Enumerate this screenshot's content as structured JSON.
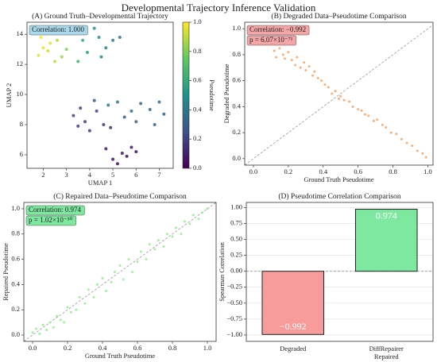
{
  "title": "Developmental Trajectory Inference Validation",
  "chart_data": [
    {
      "type": "scatter",
      "title": "(A) Ground Truth–Developmental Trajectory",
      "xlabel": "UMAP  1",
      "ylabel": "UMAP  2",
      "xlim": [
        1.3,
        7.6
      ],
      "ylim": [
        5.1,
        14.8
      ],
      "xticks": [
        2,
        3,
        4,
        5,
        6,
        7
      ],
      "yticks": [
        6,
        8,
        10,
        12,
        14
      ],
      "grid": false,
      "annotations": [
        {
          "text": "Correlation:  1.000",
          "color": "#a8d8ea"
        }
      ],
      "colormap": [
        "#440154",
        "#3b528b",
        "#21918c",
        "#5ec962",
        "#fde725"
      ],
      "colorbar": {
        "label": "Pseudotime",
        "lim": [
          0,
          1
        ],
        "ticks": [
          {
            "value": 0,
            "label": "0.0"
          },
          0.2,
          0.4,
          0.6,
          0.8,
          {
            "value": 1,
            "label": "1.0"
          }
        ]
      },
      "series": [
        {
          "x": [
            1.8,
            2.0,
            2.2,
            2.5,
            2.3,
            1.9,
            2.8,
            3.0,
            2.6,
            3.4,
            3.7,
            3.9,
            3.5,
            4.4,
            4.7,
            4.5,
            5.0,
            5.3,
            4.2,
            4.8,
            5.2,
            5.8,
            6.2,
            6.6,
            7.0,
            7.2,
            6.0,
            5.5,
            6.8,
            3.3,
            3.6,
            3.8,
            4.0,
            4.3,
            4.6,
            4.9,
            3.5,
            4.2,
            4.7,
            5.0,
            5.4,
            5.8,
            5.2,
            5.6,
            6.0
          ],
          "values": [
            12.6,
            13.1,
            12.9,
            12.2,
            13.4,
            13.8,
            12.5,
            13.0,
            13.6,
            14.2,
            13.6,
            12.8,
            12.2,
            13.8,
            13.1,
            12.5,
            13.6,
            13.8,
            14.4,
            9.3,
            9.5,
            8.9,
            9.4,
            9.0,
            9.5,
            8.7,
            8.2,
            8.5,
            8.0,
            8.6,
            9.1,
            8.2,
            7.6,
            8.9,
            8.0,
            7.8,
            7.9,
            9.6,
            6.4,
            5.7,
            6.1,
            6.5,
            5.4,
            5.9,
            6.2
          ],
          "c": [
            0.95,
            0.97,
            0.93,
            0.9,
            0.96,
            0.99,
            0.85,
            0.8,
            0.88,
            0.7,
            0.6,
            0.55,
            0.65,
            0.5,
            0.45,
            0.47,
            0.42,
            0.4,
            0.52,
            0.4,
            0.38,
            0.36,
            0.35,
            0.33,
            0.34,
            0.32,
            0.3,
            0.3,
            0.31,
            0.2,
            0.22,
            0.18,
            0.16,
            0.2,
            0.17,
            0.15,
            0.19,
            0.25,
            0.08,
            0.05,
            0.06,
            0.07,
            0.03,
            0.04,
            0.05
          ]
        }
      ]
    },
    {
      "type": "scatter",
      "title": "(B) Degraded Data–Pseudotime Comparison",
      "xlabel": "Ground Truth Pseudotime",
      "ylabel": "Degraded Pseudotime",
      "xlim": [
        -0.05,
        1.03
      ],
      "ylim": [
        -0.05,
        1.05
      ],
      "xticks": [
        {
          "value": 0,
          "label": "0.0"
        },
        0.2,
        0.4,
        0.6,
        0.8,
        {
          "value": 1,
          "label": "1.0"
        }
      ],
      "yticks": [
        {
          "value": 0,
          "label": "0.0"
        },
        0.2,
        0.4,
        0.6,
        0.8,
        {
          "value": 1,
          "label": "1.0"
        }
      ],
      "grid": false,
      "diagonal": true,
      "annotations": [
        {
          "text": "Correlation:  −0.992",
          "color": "#f4a6a6"
        },
        {
          "text": "p = 6.07×10⁻⁷¹",
          "color": "#f4a6a6"
        }
      ],
      "series": [
        {
          "color": "#f4a261",
          "x": [
            0.12,
            0.13,
            0.15,
            0.17,
            0.18,
            0.2,
            0.22,
            0.24,
            0.25,
            0.27,
            0.29,
            0.3,
            0.32,
            0.34,
            0.35,
            0.37,
            0.39,
            0.41,
            0.43,
            0.45,
            0.47,
            0.49,
            0.5,
            0.52,
            0.55,
            0.57,
            0.6,
            0.62,
            0.64,
            0.66,
            0.69,
            0.71,
            0.74,
            0.76,
            0.79,
            0.82,
            0.85,
            0.88,
            0.91,
            0.94,
            0.97,
            0.99
          ],
          "values": [
            0.83,
            0.78,
            0.85,
            0.8,
            0.77,
            0.82,
            0.76,
            0.72,
            0.78,
            0.7,
            0.74,
            0.68,
            0.71,
            0.64,
            0.67,
            0.62,
            0.6,
            0.57,
            0.55,
            0.5,
            0.52,
            0.46,
            0.48,
            0.45,
            0.44,
            0.4,
            0.38,
            0.37,
            0.34,
            0.33,
            0.29,
            0.3,
            0.26,
            0.24,
            0.2,
            0.19,
            0.15,
            0.12,
            0.1,
            0.06,
            0.04,
            0.01
          ]
        }
      ]
    },
    {
      "type": "scatter",
      "title": "(C) Repaired Data–Pseudotime Comparison",
      "xlabel": "Ground Truth Pseudotime",
      "ylabel": "Repaired Pseudotime",
      "xlim": [
        -0.05,
        1.05
      ],
      "ylim": [
        -0.05,
        1.05
      ],
      "xticks": [
        {
          "value": 0,
          "label": "0.0"
        },
        0.2,
        0.4,
        0.6,
        0.8,
        {
          "value": 1,
          "label": "1.0"
        }
      ],
      "yticks": [
        {
          "value": 0,
          "label": "0.0"
        },
        0.2,
        0.4,
        0.6,
        0.8,
        {
          "value": 1,
          "label": "1.0"
        }
      ],
      "grid": false,
      "diagonal": true,
      "annotations": [
        {
          "text": "Correlation:  0.974",
          "color": "#7ee8a0"
        },
        {
          "text": "p = 1.02×10⁻⁵⁰",
          "color": "#7ee8a0"
        }
      ],
      "series": [
        {
          "color": "#90ee90",
          "x": [
            0,
            0.02,
            0.04,
            0.06,
            0.08,
            0.1,
            0.12,
            0.14,
            0.16,
            0.18,
            0.2,
            0.22,
            0.25,
            0.27,
            0.3,
            0.32,
            0.35,
            0.37,
            0.4,
            0.42,
            0.45,
            0.47,
            0.5,
            0.52,
            0.55,
            0.57,
            0.6,
            0.62,
            0.65,
            0.67,
            0.7,
            0.72,
            0.75,
            0.77,
            0.8,
            0.82,
            0.85,
            0.87,
            0.9,
            0.92,
            0.95,
            0.97,
            1.0
          ],
          "values": [
            0.02,
            0.05,
            0.01,
            0.08,
            0.04,
            0.1,
            0.06,
            0.15,
            0.12,
            0.1,
            0.22,
            0.18,
            0.2,
            0.3,
            0.25,
            0.36,
            0.3,
            0.4,
            0.45,
            0.35,
            0.42,
            0.5,
            0.55,
            0.44,
            0.6,
            0.5,
            0.58,
            0.66,
            0.6,
            0.72,
            0.68,
            0.75,
            0.7,
            0.8,
            0.78,
            0.85,
            0.8,
            0.9,
            0.88,
            0.95,
            0.92,
            0.97,
            1.0
          ]
        }
      ]
    },
    {
      "type": "bar",
      "title": "(D) Pseudotime Correlation Comparison",
      "ylabel": "Spearman Correlation",
      "categories": [
        "Degraded",
        "DiffRepairer\nRepaired"
      ],
      "values": [
        -0.992,
        0.974
      ],
      "value_labels": [
        "−0.992",
        "0.974"
      ],
      "colors": [
        "#f79b9b",
        "#7ee8a0"
      ],
      "ylim": [
        -1.1,
        1.08
      ],
      "grid": true,
      "yticks": [
        {
          "value": -1,
          "label": "−1.00"
        },
        {
          "value": -0.75,
          "label": "−0.75"
        },
        {
          "value": -0.5,
          "label": "−0.50"
        },
        {
          "value": -0.25,
          "label": "−0.25"
        },
        {
          "value": 0,
          "label": "0.00"
        },
        {
          "value": 0.25,
          "label": "0.25"
        },
        {
          "value": 0.5,
          "label": "0.50"
        },
        {
          "value": 0.75,
          "label": "0.75"
        },
        {
          "value": 1,
          "label": "1.00"
        }
      ]
    }
  ]
}
